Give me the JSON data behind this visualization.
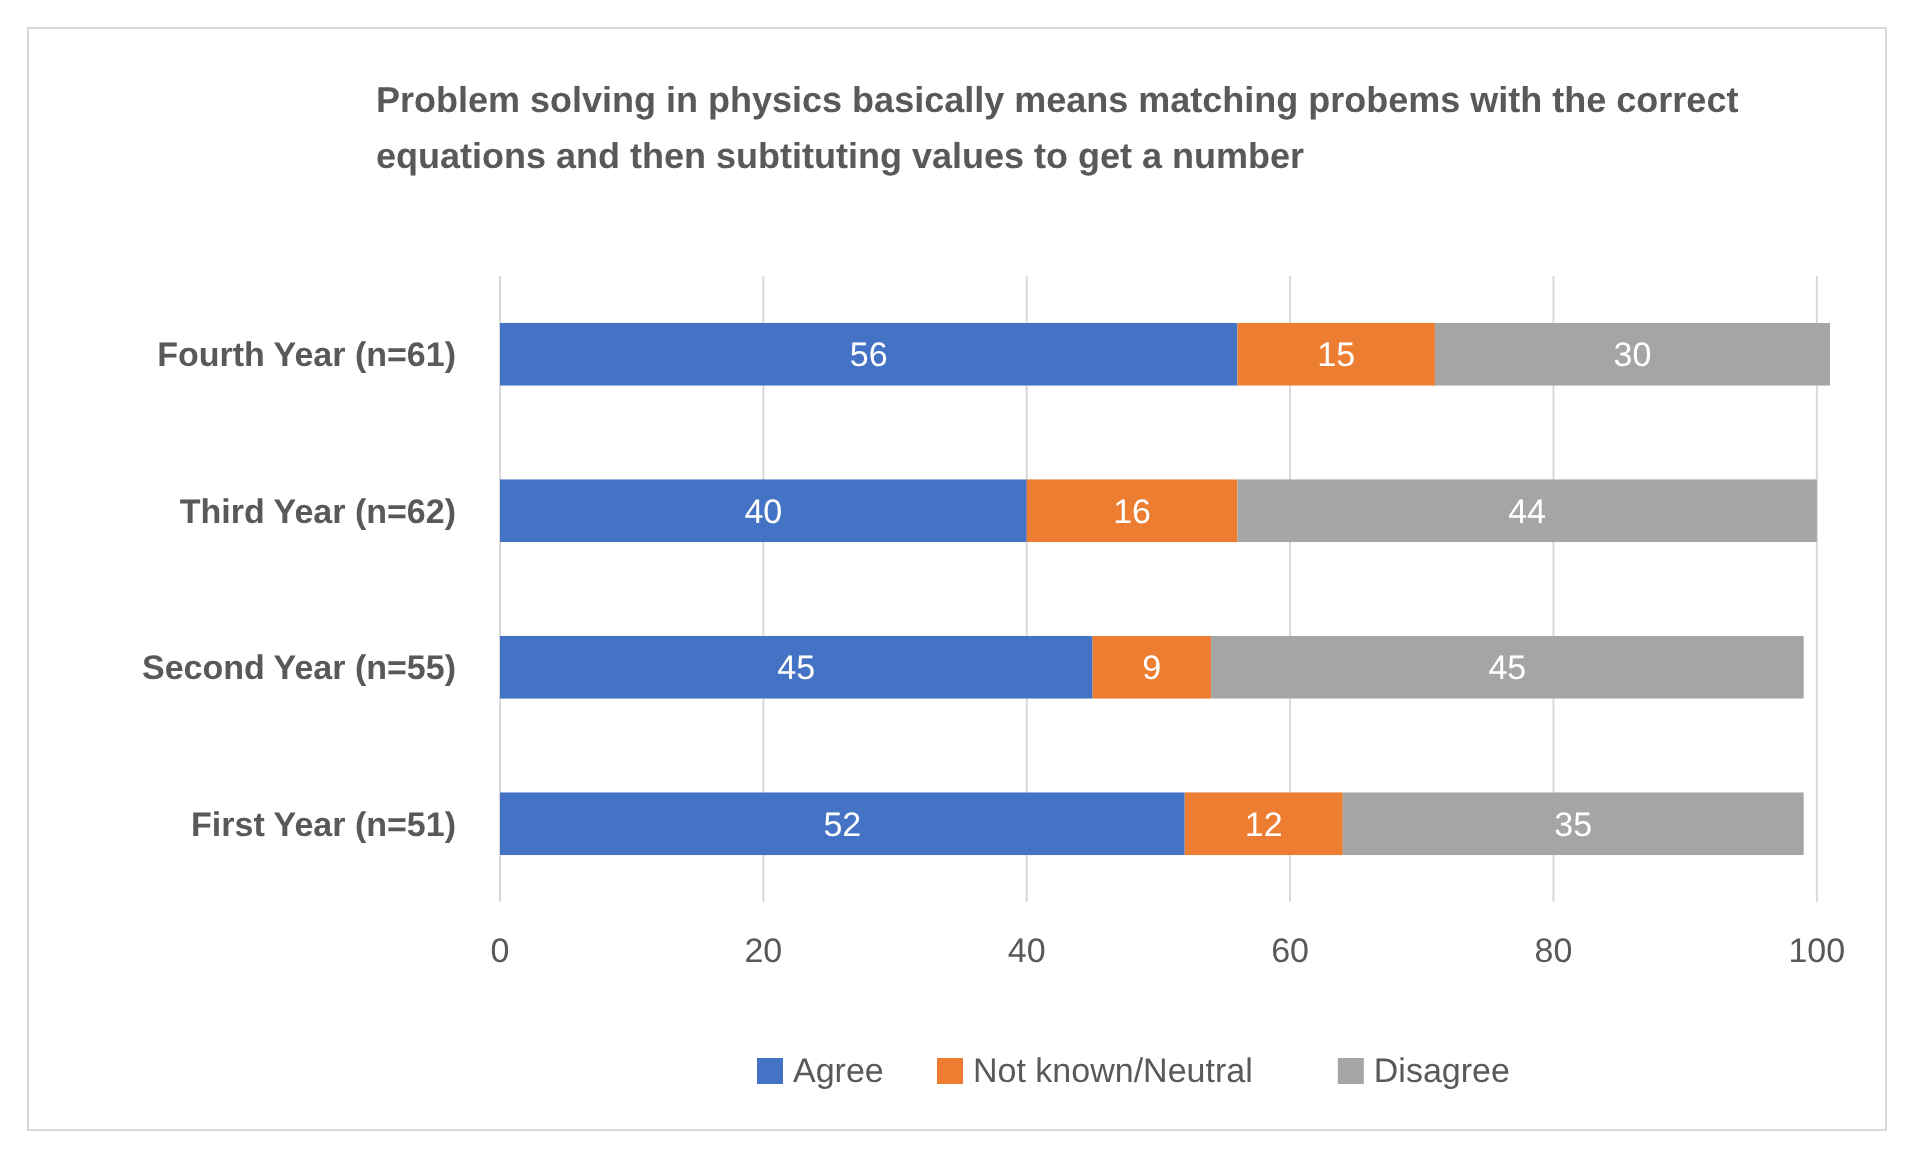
{
  "chart_data": {
    "type": "bar",
    "orientation": "horizontal",
    "stacked": true,
    "title": "Problem solving in physics basically means matching probems with the correct equations and then subtituting values to get a number",
    "categories": [
      "Fourth Year (n=61)",
      "Third Year (n=62)",
      "Second Year (n=55)",
      "First Year (n=51)"
    ],
    "series": [
      {
        "name": "Agree",
        "color": "#4472c4",
        "values": [
          56,
          40,
          45,
          52
        ]
      },
      {
        "name": "Not known/Neutral",
        "color": "#ed7d31",
        "values": [
          15,
          16,
          9,
          12
        ]
      },
      {
        "name": "Disagree",
        "color": "#a5a5a5",
        "values": [
          30,
          44,
          45,
          35
        ]
      }
    ],
    "xlim": [
      0,
      101
    ],
    "xticks": [
      0,
      20,
      40,
      60,
      80,
      100
    ],
    "grid": "x",
    "data_labels": true,
    "legend": "bottom"
  }
}
